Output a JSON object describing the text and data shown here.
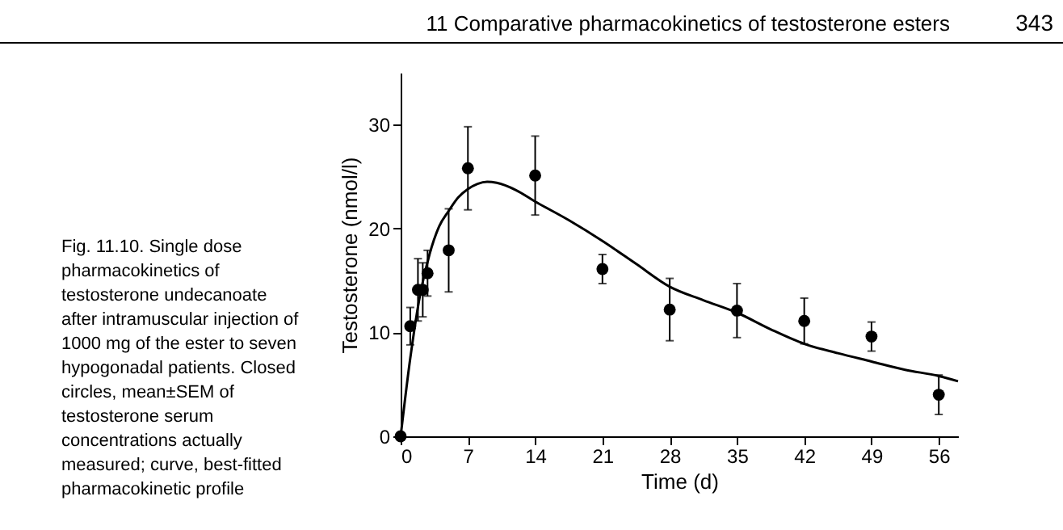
{
  "chart_data": {
    "type": "scatter",
    "xlabel": "Time (d)",
    "ylabel": "Testosterone (nmol/l)",
    "annotations": [
      "11 Comparative pharmacokinetics of testosterone esters",
      "343",
      "Fig. 11.10. Single dose pharmacokinetics of testosterone undecanoate after intramuscular injection of 1000 mg of the ester to seven hypogonadal patients. Closed circles, mean±SEM of testosterone serum concentrations actually measured; curve, best-fitted pharmacokinetic profile"
    ],
    "xlim": [
      0,
      58
    ],
    "xticks": [
      0,
      7,
      14,
      21,
      28,
      35,
      42,
      49,
      56
    ],
    "ylim": [
      0,
      35
    ],
    "yticks": [
      0,
      10,
      20,
      30
    ],
    "grid": false,
    "series": [
      {
        "marker": "circle",
        "color": "#000000",
        "x": [
          0,
          1,
          1.8,
          2.3,
          2.8,
          5,
          7,
          14,
          21,
          28,
          35,
          42,
          49,
          56
        ],
        "values": [
          0,
          10.6,
          14.1,
          14.1,
          15.7,
          17.9,
          25.8,
          25.1,
          16.1,
          12.2,
          12.1,
          11.1,
          9.6,
          4
        ],
        "errors": [
          null,
          1.8,
          3,
          2.6,
          2.2,
          4,
          4,
          3.8,
          1.4,
          3,
          2.6,
          2.2,
          1.4,
          1.9
        ]
      },
      {
        "type": "line",
        "color": "#000000",
        "line_style": "solid",
        "x": [
          0,
          1,
          2,
          3,
          4,
          5,
          6,
          7,
          8,
          9,
          10,
          12,
          14,
          17.5,
          21,
          24.5,
          28,
          31.5,
          35,
          38.5,
          42,
          45.5,
          49,
          52.5,
          56,
          58
        ],
        "values": [
          0,
          7.5,
          13.5,
          17.5,
          20.2,
          21.7,
          23,
          23.8,
          24.3,
          24.5,
          24.4,
          23.7,
          22.6,
          20.8,
          18.8,
          16.6,
          14.4,
          13.1,
          11.9,
          10.3,
          8.9,
          8,
          7.2,
          6.4,
          5.8,
          5.3
        ]
      }
    ]
  }
}
